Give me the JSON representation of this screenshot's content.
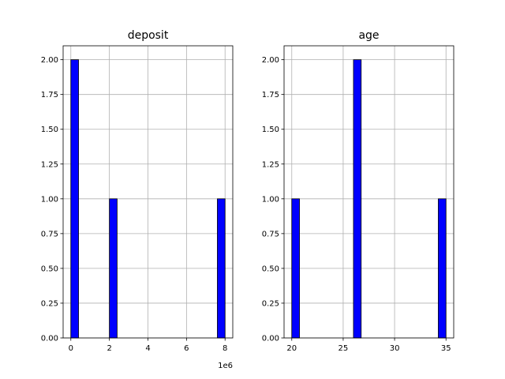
{
  "chart_data": [
    {
      "type": "bar",
      "title": "deposit",
      "xlabel": "",
      "ylabel": "",
      "xlim": [
        -400000,
        8400000
      ],
      "ylim": [
        0,
        2.1
      ],
      "grid": true,
      "bar_color": "#0000ff",
      "edge_color": "#000000",
      "bins": [
        {
          "x0": 0,
          "x1": 400000,
          "count": 2
        },
        {
          "x0": 2000000,
          "x1": 2400000,
          "count": 1
        },
        {
          "x0": 7600000,
          "x1": 8000000,
          "count": 1
        }
      ],
      "x_ticks": [
        0,
        2000000,
        4000000,
        6000000,
        8000000
      ],
      "x_tick_labels": [
        "0",
        "2",
        "4",
        "6",
        "8"
      ],
      "x_offset_label": "1e6",
      "y_ticks": [
        0,
        0.25,
        0.5,
        0.75,
        1.0,
        1.25,
        1.5,
        1.75,
        2.0
      ],
      "y_tick_labels": [
        "0.00",
        "0.25",
        "0.50",
        "0.75",
        "1.00",
        "1.25",
        "1.50",
        "1.75",
        "2.00"
      ]
    },
    {
      "type": "bar",
      "title": "age",
      "xlabel": "",
      "ylabel": "",
      "xlim": [
        19.25,
        35.75
      ],
      "ylim": [
        0,
        2.1
      ],
      "grid": true,
      "bar_color": "#0000ff",
      "edge_color": "#000000",
      "bins": [
        {
          "x0": 20.0,
          "x1": 20.75,
          "count": 1
        },
        {
          "x0": 26.0,
          "x1": 26.75,
          "count": 2
        },
        {
          "x0": 34.25,
          "x1": 35.0,
          "count": 1
        }
      ],
      "x_ticks": [
        20,
        25,
        30,
        35
      ],
      "x_tick_labels": [
        "20",
        "25",
        "30",
        "35"
      ],
      "x_offset_label": "",
      "y_ticks": [
        0,
        0.25,
        0.5,
        0.75,
        1.0,
        1.25,
        1.5,
        1.75,
        2.0
      ],
      "y_tick_labels": [
        "0.00",
        "0.25",
        "0.50",
        "0.75",
        "1.00",
        "1.25",
        "1.50",
        "1.75",
        "2.00"
      ]
    }
  ]
}
